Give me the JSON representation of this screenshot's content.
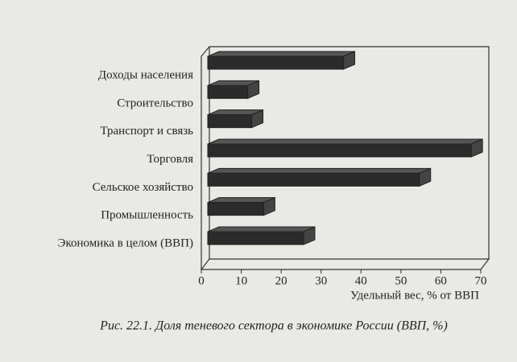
{
  "chart_data": {
    "type": "bar3d_horizontal",
    "caption": "Рис. 22.1.  Доля теневого сектора в экономике России (ВВП, %)",
    "xlabel": "Удельный вес, % от ВВП",
    "categories": [
      "Доходы населения",
      "Строительство",
      "Транспорт и связь",
      "Торговля",
      "Сельское хозяйство",
      "Промышленность",
      "Экономика в целом (ВВП)"
    ],
    "values": [
      34,
      10,
      11,
      66,
      53,
      14,
      24
    ],
    "color": "#2b2b2b",
    "xlim": [
      0,
      70
    ],
    "xticks": [
      0,
      10,
      20,
      30,
      40,
      50,
      60,
      70
    ]
  }
}
